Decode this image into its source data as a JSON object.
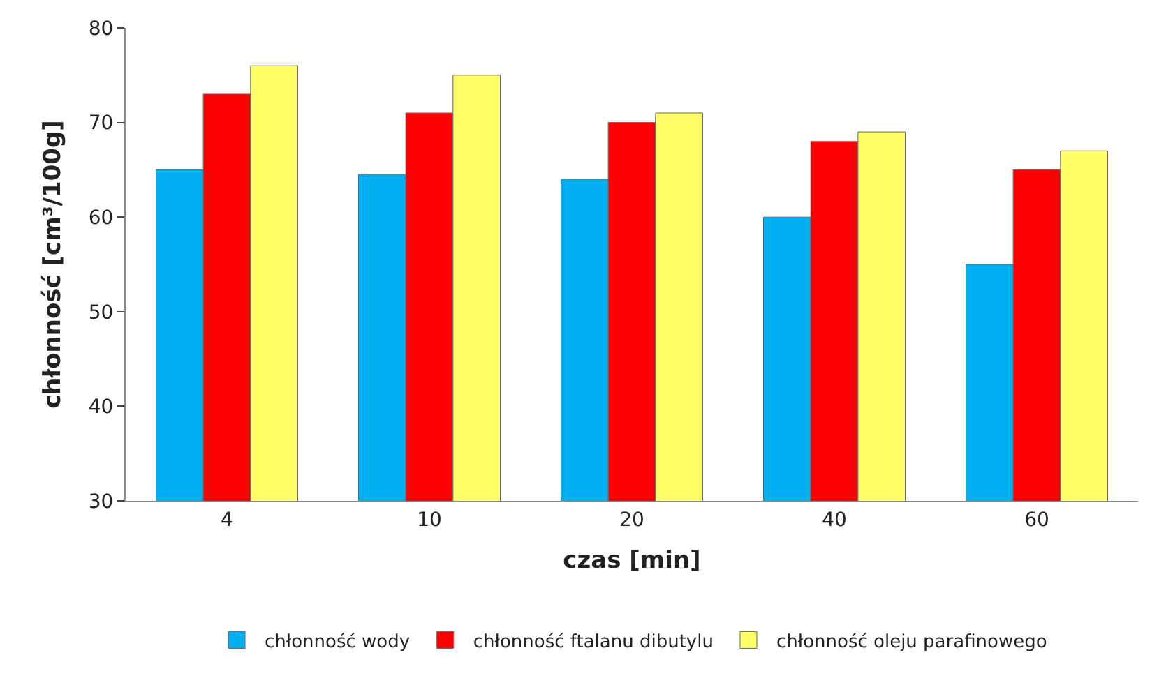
{
  "chart_data": {
    "type": "bar",
    "xlabel": "czas [min]",
    "ylabel": "chłonność [cm³/100g]",
    "categories": [
      "4",
      "10",
      "20",
      "40",
      "60"
    ],
    "series": [
      {
        "name": "chłonność wody",
        "color": "#00b0f0",
        "values": [
          65,
          64.5,
          64,
          60,
          55
        ]
      },
      {
        "name": "chłonność ftalanu dibutylu",
        "color": "#ff0000",
        "values": [
          73,
          71,
          70,
          68,
          65
        ]
      },
      {
        "name": "chłonność oleju parafinowego",
        "color": "#ffff66",
        "values": [
          76,
          75,
          71,
          69,
          67
        ]
      }
    ],
    "ylim": [
      30,
      80
    ],
    "yticks": [
      30,
      40,
      50,
      60,
      70,
      80
    ],
    "grid": false,
    "legend": "bottom"
  }
}
